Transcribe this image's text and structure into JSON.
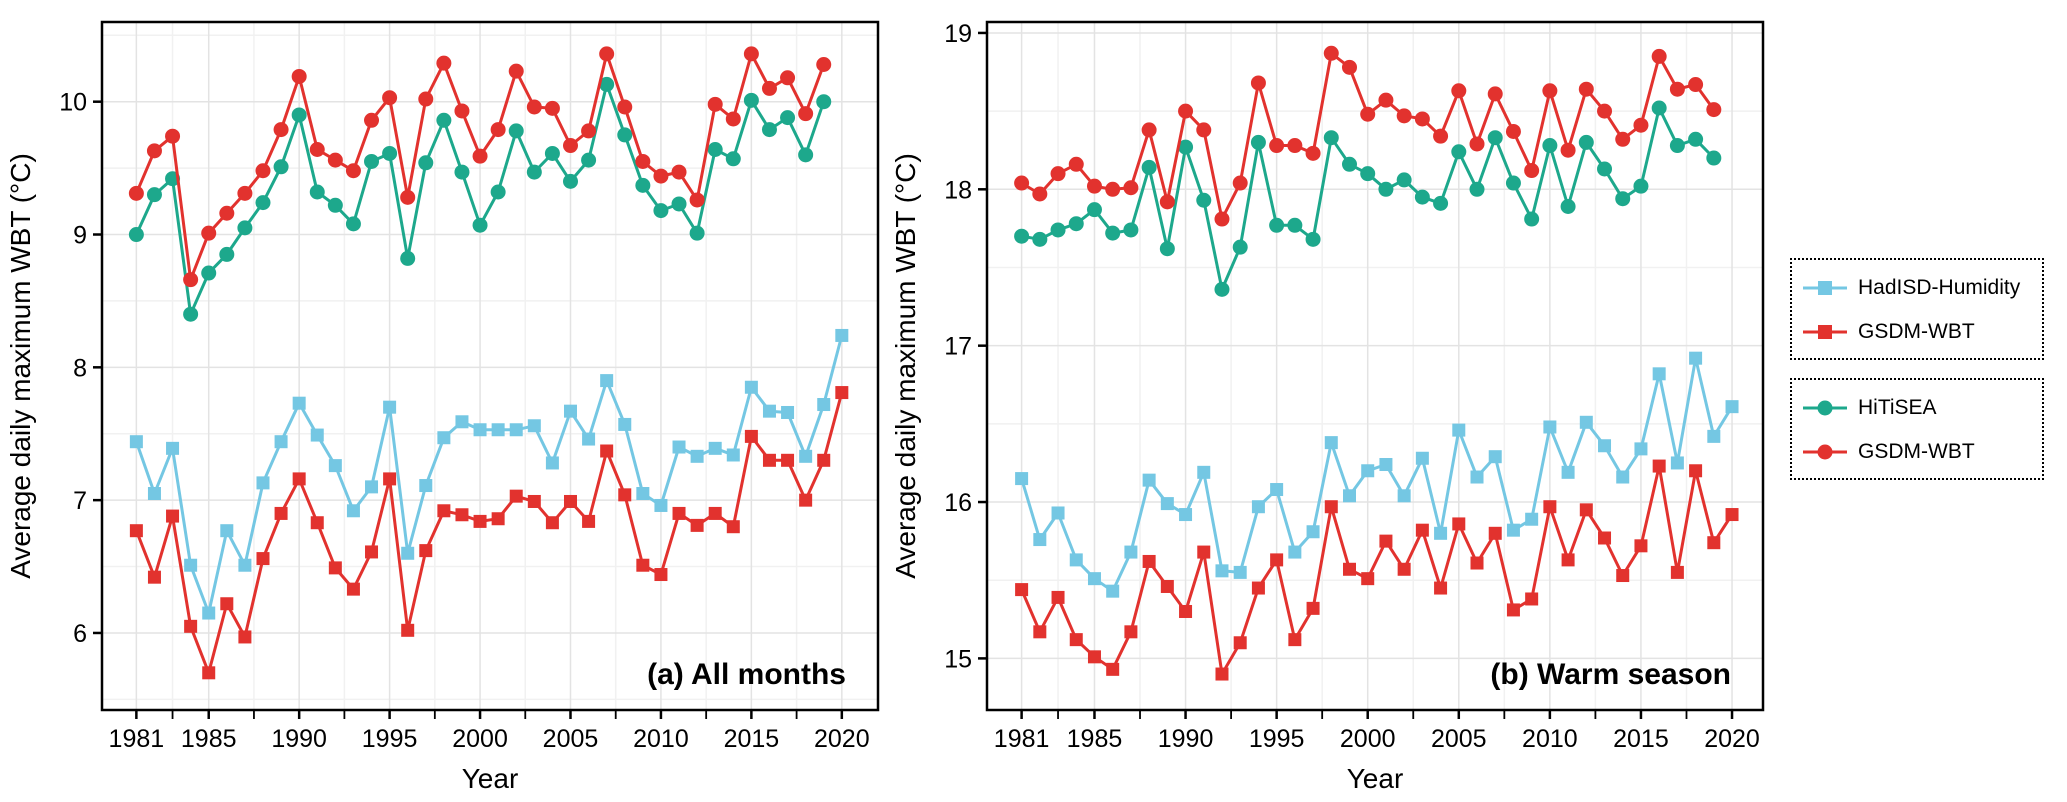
{
  "figure": {
    "background": "#ffffff"
  },
  "colors": {
    "hadisd_blue": "#74C7E3",
    "gsdm_red": "#E2322E",
    "hitisea_teal": "#1DA88C",
    "grid_major": "#E3E3E3",
    "grid_minor": "#F1F1F1",
    "panel_border": "#000000",
    "tick_text": "#000000"
  },
  "legend": {
    "groups": [
      {
        "entries": [
          {
            "label": "HadISD-Humidity",
            "marker": "square",
            "color_key": "hadisd_blue"
          },
          {
            "label": "GSDM-WBT",
            "marker": "square",
            "color_key": "gsdm_red"
          }
        ]
      },
      {
        "entries": [
          {
            "label": "HiTiSEA",
            "marker": "circle",
            "color_key": "hitisea_teal"
          },
          {
            "label": "GSDM-WBT",
            "marker": "circle",
            "color_key": "gsdm_red"
          }
        ]
      }
    ]
  },
  "chart_data": [
    {
      "id": "a",
      "type": "line",
      "annotation": "(a) All months",
      "xlabel": "Year",
      "ylabel": "Average daily maximum WBT (°C)",
      "xlim": [
        1979.1,
        2022.0
      ],
      "ylim": [
        5.42,
        10.6
      ],
      "x_ticks": [
        1981,
        1985,
        1990,
        1995,
        2000,
        2005,
        2010,
        2015,
        2020
      ],
      "y_ticks": [
        6,
        7,
        8,
        9,
        10
      ],
      "x_minor": [
        1983,
        1987.5,
        1992.5,
        1997.5,
        2002.5,
        2007.5,
        2012.5,
        2017.5
      ],
      "y_minor": [
        5.5,
        6.5,
        7.5,
        8.5,
        9.5,
        10.5
      ],
      "grid": true,
      "legend_position": "right-outside",
      "series": [
        {
          "name": "HiTiSEA",
          "marker": "circle",
          "color_key": "hitisea_teal",
          "start_year": 1981,
          "values": [
            9.0,
            9.3,
            9.42,
            8.4,
            8.71,
            8.85,
            9.05,
            9.24,
            9.51,
            9.9,
            9.32,
            9.22,
            9.08,
            9.55,
            9.61,
            8.82,
            9.54,
            9.86,
            9.47,
            9.07,
            9.32,
            9.78,
            9.47,
            9.61,
            9.4,
            9.56,
            10.13,
            9.75,
            9.37,
            9.18,
            9.23,
            9.01,
            9.64,
            9.57,
            10.01,
            9.79,
            9.88,
            9.6,
            10.0
          ]
        },
        {
          "name": "GSDM-WBT",
          "marker": "circle",
          "color_key": "gsdm_red",
          "start_year": 1981,
          "values": [
            9.31,
            9.63,
            9.74,
            8.66,
            9.01,
            9.16,
            9.31,
            9.48,
            9.79,
            10.19,
            9.64,
            9.56,
            9.48,
            9.86,
            10.03,
            9.28,
            10.02,
            10.29,
            9.93,
            9.59,
            9.79,
            10.23,
            9.96,
            9.95,
            9.67,
            9.78,
            10.36,
            9.96,
            9.55,
            9.44,
            9.47,
            9.26,
            9.98,
            9.87,
            10.36,
            10.1,
            10.18,
            9.91,
            10.28
          ]
        },
        {
          "name": "HadISD-Humidity",
          "marker": "square",
          "color_key": "hadisd_blue",
          "start_year": 1981,
          "values": [
            7.44,
            7.05,
            7.39,
            6.51,
            6.15,
            6.77,
            6.51,
            7.13,
            7.44,
            7.73,
            7.49,
            7.26,
            6.92,
            7.1,
            7.7,
            6.6,
            7.11,
            7.47,
            7.59,
            7.53,
            7.53,
            7.53,
            7.56,
            7.28,
            7.67,
            7.46,
            7.9,
            7.57,
            7.05,
            6.96,
            7.4,
            7.33,
            7.39,
            7.34,
            7.85,
            7.67,
            7.66,
            7.33,
            7.72,
            8.24
          ]
        },
        {
          "name": "GSDM-WBT",
          "marker": "square",
          "color_key": "gsdm_red",
          "start_year": 1981,
          "values": [
            6.77,
            6.42,
            6.88,
            6.05,
            5.7,
            6.22,
            5.97,
            6.56,
            6.9,
            7.16,
            6.83,
            6.49,
            6.33,
            6.61,
            7.16,
            6.02,
            6.62,
            6.92,
            6.89,
            6.84,
            6.86,
            7.03,
            6.99,
            6.83,
            6.99,
            6.84,
            7.37,
            7.04,
            6.51,
            6.44,
            6.9,
            6.81,
            6.9,
            6.8,
            7.48,
            7.3,
            7.3,
            7.0,
            7.3,
            7.81
          ]
        }
      ]
    },
    {
      "id": "b",
      "type": "line",
      "annotation": "(b) Warm season",
      "xlabel": "Year",
      "ylabel": "Average daily maximum WBT (°C)",
      "xlim": [
        1979.1,
        2021.7
      ],
      "ylim": [
        14.67,
        19.07
      ],
      "x_ticks": [
        1981,
        1985,
        1990,
        1995,
        2000,
        2005,
        2010,
        2015,
        2020
      ],
      "y_ticks": [
        15,
        16,
        17,
        18,
        19
      ],
      "x_minor": [
        1983,
        1987.5,
        1992.5,
        1997.5,
        2002.5,
        2007.5,
        2012.5,
        2017.5
      ],
      "y_minor": [
        15.5,
        16.5,
        17.5,
        18.5
      ],
      "grid": true,
      "legend_position": "right-outside",
      "series": [
        {
          "name": "HiTiSEA",
          "marker": "circle",
          "color_key": "hitisea_teal",
          "start_year": 1981,
          "values": [
            17.7,
            17.68,
            17.74,
            17.78,
            17.87,
            17.72,
            17.74,
            18.14,
            17.62,
            18.27,
            17.93,
            17.36,
            17.63,
            18.3,
            17.77,
            17.77,
            17.68,
            18.33,
            18.16,
            18.1,
            18.0,
            18.06,
            17.95,
            17.91,
            18.24,
            18.0,
            18.33,
            18.04,
            17.81,
            18.28,
            17.89,
            18.3,
            18.13,
            17.94,
            18.02,
            18.52,
            18.28,
            18.32,
            18.2
          ]
        },
        {
          "name": "GSDM-WBT",
          "marker": "circle",
          "color_key": "gsdm_red",
          "start_year": 1981,
          "values": [
            18.04,
            17.97,
            18.1,
            18.16,
            18.02,
            18.0,
            18.01,
            18.38,
            17.92,
            18.5,
            18.38,
            17.81,
            18.04,
            18.68,
            18.28,
            18.28,
            18.23,
            18.87,
            18.78,
            18.48,
            18.57,
            18.47,
            18.45,
            18.34,
            18.63,
            18.29,
            18.61,
            18.37,
            18.12,
            18.63,
            18.25,
            18.64,
            18.5,
            18.32,
            18.41,
            18.85,
            18.64,
            18.67,
            18.51
          ]
        },
        {
          "name": "HadISD-Humidity",
          "marker": "square",
          "color_key": "hadisd_blue",
          "start_year": 1981,
          "values": [
            16.15,
            15.76,
            15.93,
            15.63,
            15.51,
            15.43,
            15.68,
            16.14,
            15.99,
            15.92,
            16.19,
            15.56,
            15.55,
            15.97,
            16.08,
            15.68,
            15.81,
            16.38,
            16.04,
            16.2,
            16.24,
            16.04,
            16.28,
            15.8,
            16.46,
            16.16,
            16.29,
            15.82,
            15.89,
            16.48,
            16.19,
            16.51,
            16.36,
            16.16,
            16.34,
            16.82,
            16.25,
            16.92,
            16.42,
            16.61
          ]
        },
        {
          "name": "GSDM-WBT",
          "marker": "square",
          "color_key": "gsdm_red",
          "start_year": 1981,
          "values": [
            15.44,
            15.17,
            15.39,
            15.12,
            15.01,
            14.93,
            15.17,
            15.62,
            15.46,
            15.3,
            15.68,
            14.9,
            15.1,
            15.45,
            15.63,
            15.12,
            15.32,
            15.97,
            15.57,
            15.51,
            15.75,
            15.57,
            15.82,
            15.45,
            15.86,
            15.61,
            15.8,
            15.31,
            15.38,
            15.97,
            15.63,
            15.95,
            15.77,
            15.53,
            15.72,
            16.23,
            15.55,
            16.2,
            15.74,
            15.92
          ]
        }
      ]
    }
  ]
}
